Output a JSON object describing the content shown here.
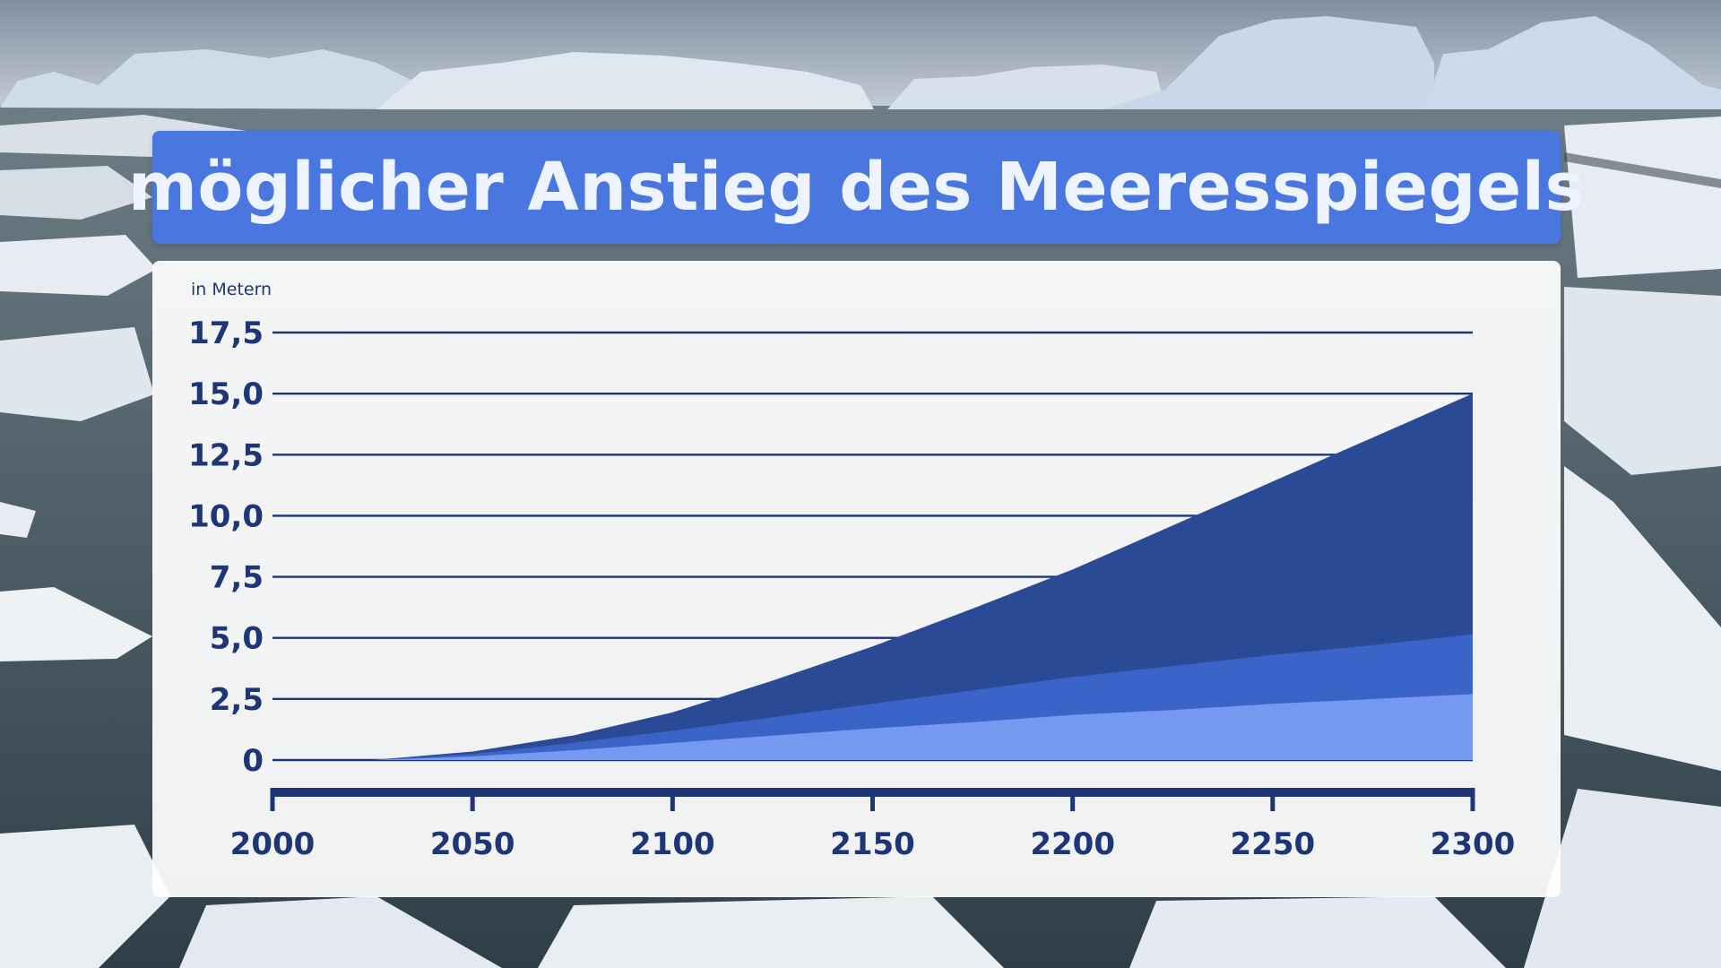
{
  "title": "möglicher Anstieg des Meeresspiegels",
  "background": {
    "scene": "arctic-sea-ice-icebergs",
    "colors": {
      "sky": "#aeb8c4",
      "water": "#3f4f58",
      "ice": "#e6ecf1",
      "iceberg": "#cfdbe8"
    }
  },
  "colors": {
    "title_bg": "#4a76e0",
    "title_text": "#eef4ff",
    "axis": "#1e3576",
    "gridline": "#1e3576",
    "series_high": "#2b4a96",
    "series_mid": "#3a64c8",
    "series_low": "#7499ee"
  },
  "chart_data": {
    "type": "area",
    "title": "möglicher Anstieg des Meeresspiegels",
    "ylabel": "in Metern",
    "xlabel": "",
    "xlim": [
      2000,
      2300
    ],
    "ylim": [
      0,
      17.5
    ],
    "x_ticks": [
      "2000",
      "2050",
      "2100",
      "2150",
      "2200",
      "2250",
      "2300"
    ],
    "y_ticks": [
      "0",
      "2,5",
      "5,0",
      "7,5",
      "10,0",
      "12,5",
      "15,0",
      "17,5"
    ],
    "grid": true,
    "legend": "none",
    "stacked": false,
    "x": [
      2000,
      2025,
      2050,
      2075,
      2100,
      2125,
      2150,
      2175,
      2200,
      2225,
      2250,
      2275,
      2300
    ],
    "series": [
      {
        "values": [
          0,
          0,
          0.35,
          1.0,
          1.95,
          3.25,
          4.65,
          6.2,
          7.8,
          9.6,
          11.4,
          13.2,
          15.0
        ],
        "color": "#2b4a96"
      },
      {
        "values": [
          0,
          0,
          0.25,
          0.7,
          1.2,
          1.75,
          2.3,
          2.85,
          3.4,
          3.85,
          4.3,
          4.7,
          5.15
        ],
        "color": "#3a64c8"
      },
      {
        "values": [
          0,
          0,
          0.15,
          0.4,
          0.7,
          1.0,
          1.3,
          1.55,
          1.85,
          2.05,
          2.3,
          2.5,
          2.7
        ],
        "color": "#7499ee"
      }
    ]
  }
}
